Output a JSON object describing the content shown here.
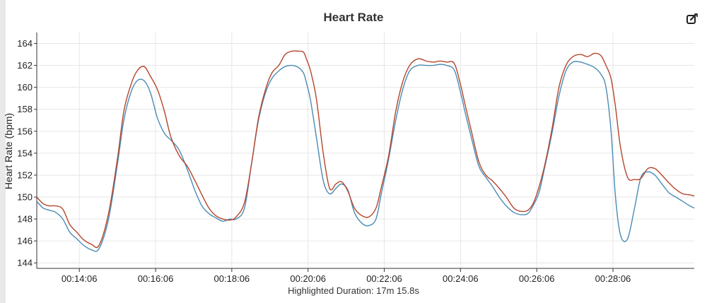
{
  "title": "Heart Rate",
  "toolbar": {
    "export_icon": "pencil-export-icon"
  },
  "footer": {
    "highlighted_duration": "Highlighted Duration: 17m 15.8s"
  },
  "colors": {
    "series_red": "#b5452b",
    "series_blue": "#4a8bb5",
    "grid": "#e6e6e6",
    "axis": "#333333"
  },
  "chart_data": {
    "type": "line",
    "title": "Heart Rate",
    "xlabel": "",
    "ylabel": "Heart Rate (bpm)",
    "ylim": [
      143.5,
      165
    ],
    "yticks": [
      144,
      146,
      148,
      150,
      152,
      154,
      156,
      158,
      160,
      162,
      164
    ],
    "xlim": [
      "00:12:59",
      "00:30:14"
    ],
    "xticks": [
      "00:14:06",
      "00:16:06",
      "00:18:06",
      "00:20:06",
      "00:22:06",
      "00:24:06",
      "00:26:06",
      "00:28:06"
    ],
    "grid": true,
    "legend": "none",
    "series": [
      {
        "color": "#b5452b",
        "x": [
          "00:12:59",
          "00:13:09",
          "00:13:19",
          "00:13:29",
          "00:13:40",
          "00:13:51",
          "00:14:02",
          "00:14:13",
          "00:14:25",
          "00:14:37",
          "00:14:52",
          "00:15:06",
          "00:15:16",
          "00:15:27",
          "00:15:37",
          "00:15:48",
          "00:15:58",
          "00:16:09",
          "00:16:20",
          "00:16:30",
          "00:16:43",
          "00:16:56",
          "00:17:08",
          "00:17:19",
          "00:17:30",
          "00:17:41",
          "00:17:52",
          "00:18:03",
          "00:18:13",
          "00:18:26",
          "00:18:37",
          "00:18:48",
          "00:18:59",
          "00:19:09",
          "00:19:20",
          "00:19:30",
          "00:19:41",
          "00:19:51",
          "00:19:59",
          "00:20:04",
          "00:20:10",
          "00:20:19",
          "00:20:30",
          "00:20:40",
          "00:20:50",
          "00:20:59",
          "00:21:09",
          "00:21:19",
          "00:21:31",
          "00:21:42",
          "00:21:53",
          "00:22:01",
          "00:22:13",
          "00:22:24",
          "00:22:35",
          "00:22:46",
          "00:22:59",
          "00:23:12",
          "00:23:23",
          "00:23:34",
          "00:23:44",
          "00:23:56",
          "00:24:05",
          "00:24:13",
          "00:24:24",
          "00:24:35",
          "00:24:46",
          "00:24:56",
          "00:25:07",
          "00:25:18",
          "00:25:30",
          "00:25:41",
          "00:25:52",
          "00:26:01",
          "00:26:10",
          "00:26:19",
          "00:26:30",
          "00:26:41",
          "00:26:52",
          "00:27:03",
          "00:27:15",
          "00:27:26",
          "00:27:37",
          "00:27:47",
          "00:27:55",
          "00:28:03",
          "00:28:10",
          "00:28:18",
          "00:28:29",
          "00:28:40",
          "00:28:50",
          "00:29:01",
          "00:29:12",
          "00:29:23",
          "00:29:34",
          "00:29:45",
          "00:29:56",
          "00:30:07",
          "00:30:14"
        ],
        "y": [
          150.0,
          149.4,
          149.2,
          149.2,
          148.9,
          147.5,
          146.8,
          146.1,
          145.7,
          145.6,
          148.5,
          153.5,
          157.8,
          160.2,
          161.5,
          161.9,
          161.0,
          159.8,
          157.8,
          155.5,
          153.8,
          152.8,
          151.5,
          150.2,
          149.0,
          148.3,
          148.0,
          147.9,
          148.2,
          149.5,
          153.0,
          157.2,
          159.8,
          161.3,
          162.0,
          163.0,
          163.3,
          163.3,
          163.2,
          162.5,
          161.5,
          159.0,
          154.0,
          150.8,
          151.2,
          151.4,
          150.5,
          149.0,
          148.3,
          148.2,
          149.0,
          150.8,
          153.8,
          157.8,
          160.5,
          162.0,
          162.6,
          162.4,
          162.3,
          162.4,
          162.3,
          162.2,
          160.5,
          158.5,
          155.8,
          153.2,
          152.0,
          151.5,
          150.8,
          150.0,
          149.0,
          148.7,
          148.8,
          149.5,
          151.0,
          153.0,
          156.2,
          160.0,
          162.0,
          162.8,
          163.0,
          162.8,
          163.1,
          162.9,
          162.0,
          160.8,
          158.2,
          154.5,
          151.8,
          151.6,
          151.7,
          152.6,
          152.6,
          152.0,
          151.3,
          150.7,
          150.3,
          150.2,
          150.1
        ]
      },
      {
        "color": "#4a8bb5",
        "x": [
          "00:12:59",
          "00:13:09",
          "00:13:19",
          "00:13:29",
          "00:13:40",
          "00:13:51",
          "00:14:02",
          "00:14:13",
          "00:14:25",
          "00:14:37",
          "00:14:52",
          "00:15:06",
          "00:15:16",
          "00:15:27",
          "00:15:37",
          "00:15:48",
          "00:15:58",
          "00:16:09",
          "00:16:20",
          "00:16:30",
          "00:16:43",
          "00:16:56",
          "00:17:08",
          "00:17:19",
          "00:17:30",
          "00:17:41",
          "00:17:52",
          "00:18:03",
          "00:18:13",
          "00:18:26",
          "00:18:37",
          "00:18:48",
          "00:18:59",
          "00:19:09",
          "00:19:20",
          "00:19:30",
          "00:19:41",
          "00:19:51",
          "00:19:59",
          "00:20:04",
          "00:20:10",
          "00:20:19",
          "00:20:30",
          "00:20:40",
          "00:20:50",
          "00:20:59",
          "00:21:09",
          "00:21:19",
          "00:21:31",
          "00:21:42",
          "00:21:53",
          "00:22:01",
          "00:22:13",
          "00:22:24",
          "00:22:35",
          "00:22:46",
          "00:22:59",
          "00:23:12",
          "00:23:23",
          "00:23:34",
          "00:23:44",
          "00:23:56",
          "00:24:05",
          "00:24:13",
          "00:24:24",
          "00:24:35",
          "00:24:46",
          "00:24:56",
          "00:25:07",
          "00:25:18",
          "00:25:30",
          "00:25:41",
          "00:25:52",
          "00:26:01",
          "00:26:10",
          "00:26:19",
          "00:26:30",
          "00:26:41",
          "00:26:52",
          "00:27:03",
          "00:27:15",
          "00:27:26",
          "00:27:37",
          "00:27:47",
          "00:27:55",
          "00:28:03",
          "00:28:10",
          "00:28:18",
          "00:28:29",
          "00:28:40",
          "00:28:50",
          "00:29:01",
          "00:29:12",
          "00:29:23",
          "00:29:34",
          "00:29:45",
          "00:29:56",
          "00:30:07",
          "00:30:14"
        ],
        "y": [
          149.6,
          149.0,
          148.8,
          148.6,
          148.0,
          146.8,
          146.2,
          145.6,
          145.2,
          145.3,
          148.0,
          153.0,
          157.0,
          159.5,
          160.6,
          160.6,
          159.5,
          157.2,
          155.8,
          155.2,
          154.3,
          152.5,
          150.6,
          149.2,
          148.5,
          148.1,
          147.8,
          148.0,
          148.0,
          149.0,
          153.0,
          157.0,
          159.5,
          160.8,
          161.5,
          161.9,
          162.0,
          161.8,
          161.3,
          160.3,
          158.8,
          155.5,
          151.5,
          150.3,
          150.8,
          151.2,
          150.6,
          148.6,
          147.6,
          147.4,
          148.0,
          150.2,
          153.5,
          157.0,
          159.8,
          161.5,
          162.0,
          162.0,
          162.0,
          162.1,
          162.0,
          161.6,
          159.8,
          157.8,
          155.2,
          152.8,
          151.8,
          151.0,
          150.0,
          149.2,
          148.6,
          148.4,
          148.5,
          149.3,
          150.5,
          152.8,
          155.8,
          159.2,
          161.5,
          162.3,
          162.3,
          162.1,
          161.8,
          161.2,
          160.0,
          156.0,
          150.0,
          146.5,
          146.2,
          149.0,
          151.8,
          152.3,
          152.0,
          151.2,
          150.4,
          150.0,
          149.6,
          149.2,
          149.0
        ]
      }
    ]
  }
}
